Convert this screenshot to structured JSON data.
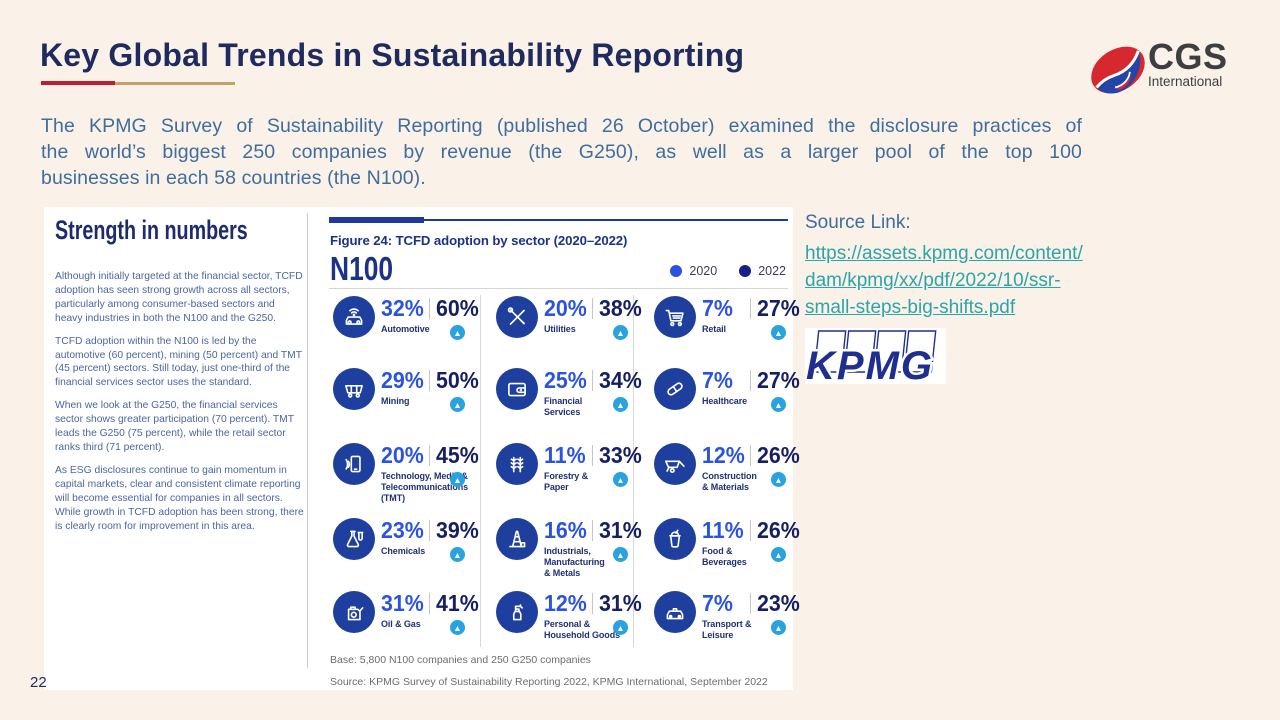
{
  "slide": {
    "title": "Key Global Trends in Sustainability Reporting",
    "intro_lines": [
      "The KPMG Survey of Sustainability Reporting (published 26 October) examined the disclosure practices of",
      "the world’s biggest 250 companies by revenue (the G250), as well as a larger pool of the top 100",
      "businesses in each 58 countries (the N100)."
    ],
    "source_label": "Source Link:",
    "source_link_lines": [
      "https://assets.kpmg.com/content/",
      "dam/kpmg/xx/pdf/2022/10/ssr-",
      "small-steps-big-shifts.pdf"
    ],
    "source_link_url": "https://assets.kpmg.com/content/dam/kpmg/xx/pdf/2022/10/ssr-small-steps-big-shifts.pdf",
    "page_number": "22"
  },
  "cgs_logo": {
    "name": "CGS",
    "sub": "International"
  },
  "kpmg_logo": {
    "text": "KPMG"
  },
  "report": {
    "headline": "Strength in numbers",
    "paragraphs": [
      "Although initially targeted at the financial sector, TCFD adoption has seen strong growth across all sectors, particularly among consumer-based sectors and heavy industries in both the N100 and the G250.",
      "TCFD adoption within the N100 is led by the automotive (60 percent), mining (50 percent) and TMT (45 percent) sectors. Still today, just one-third of the financial services sector uses the standard.",
      "When we look at the G250, the financial services sector shows greater participation (70 percent). TMT leads the G250 (75 percent), while the retail sector ranks third (71 percent).",
      "As ESG disclosures continue to gain momentum in capital markets, clear and consistent climate reporting will become essential for companies in all sectors. While growth in TCFD adoption has been strong, there is clearly room for improvement in this area."
    ],
    "figure_title": "Figure 24: TCFD adoption by sector (2020–2022)",
    "group_label": "N100",
    "legend": [
      {
        "label": "2020",
        "color": "#2B53E2"
      },
      {
        "label": "2022",
        "color": "#16208C"
      }
    ],
    "base_note": "Base: 5,800 N100 companies and 250 G250 companies",
    "source_note": "Source: KPMG Survey of Sustainability Reporting 2022, KPMG International, September 2022"
  },
  "chart_data": {
    "type": "table",
    "title": "Figure 24: TCFD adoption by sector (2020–2022)",
    "group": "N100",
    "series_names": [
      "2020",
      "2022"
    ],
    "sectors": [
      {
        "label": "Automotive",
        "icon": "car-icon",
        "v2020": "32%",
        "v2022": "60%",
        "trend": "up"
      },
      {
        "label": "Mining",
        "icon": "mine-cart-icon",
        "v2020": "29%",
        "v2022": "50%",
        "trend": "up"
      },
      {
        "label": "Technology, Media &\nTelecommunications\n(TMT)",
        "icon": "smartphone-icon",
        "v2020": "20%",
        "v2022": "45%",
        "trend": "up"
      },
      {
        "label": "Chemicals",
        "icon": "flask-icon",
        "v2020": "23%",
        "v2022": "39%",
        "trend": "up"
      },
      {
        "label": "Oil & Gas",
        "icon": "oil-can-icon",
        "v2020": "31%",
        "v2022": "41%",
        "trend": "up"
      },
      {
        "label": "Utilities",
        "icon": "tools-icon",
        "v2020": "20%",
        "v2022": "38%",
        "trend": "up"
      },
      {
        "label": "Financial\nServices",
        "icon": "wallet-icon",
        "v2020": "25%",
        "v2022": "34%",
        "trend": "up"
      },
      {
        "label": "Forestry &\nPaper",
        "icon": "wheat-icon",
        "v2020": "11%",
        "v2022": "33%",
        "trend": "up"
      },
      {
        "label": "Industrials,\nManufacturing\n& Metals",
        "icon": "derrick-icon",
        "v2020": "16%",
        "v2022": "31%",
        "trend": "up"
      },
      {
        "label": "Personal &\nHousehold Goods",
        "icon": "spray-bottle-icon",
        "v2020": "12%",
        "v2022": "31%",
        "trend": "up"
      },
      {
        "label": "Retail",
        "icon": "cart-icon",
        "v2020": "7%",
        "v2022": "27%",
        "trend": "up"
      },
      {
        "label": "Healthcare",
        "icon": "pill-icon",
        "v2020": "7%",
        "v2022": "27%",
        "trend": "up"
      },
      {
        "label": "Construction\n& Materials",
        "icon": "wheelbarrow-icon",
        "v2020": "12%",
        "v2022": "26%",
        "trend": "up"
      },
      {
        "label": "Food &\nBeverages",
        "icon": "cup-icon",
        "v2020": "11%",
        "v2022": "26%",
        "trend": "up"
      },
      {
        "label": "Transport &\nLeisure",
        "icon": "taxi-icon",
        "v2020": "7%",
        "v2022": "23%",
        "trend": "up"
      }
    ]
  }
}
